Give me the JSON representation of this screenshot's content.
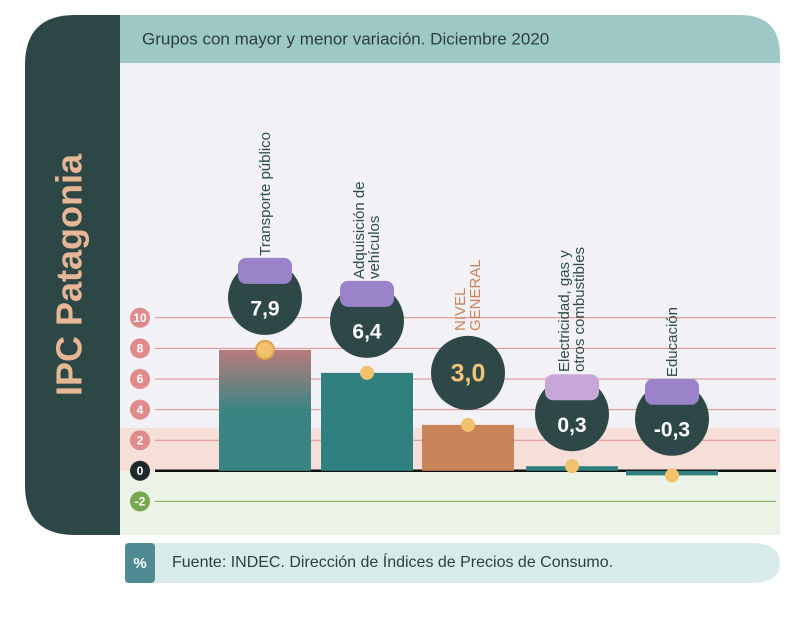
{
  "chart_data": {
    "type": "bar",
    "side_title": "IPC Patagonia",
    "title": "Grupos con mayor y menor variación. Diciembre 2020",
    "categories": [
      "Transporte público",
      "Adquisición de vehículos",
      "NIVEL GENERAL",
      "Electricidad, gas y otros combustibles",
      "Educación"
    ],
    "values": [
      7.9,
      6.4,
      3.0,
      0.3,
      -0.3
    ],
    "value_labels": [
      "7,9",
      "6,4",
      "3,0",
      "0,3",
      "-0,3"
    ],
    "colors": [
      "#3a8583",
      "#2f807e",
      "#c98459",
      "#2f807e",
      "#2f807e"
    ],
    "ylim": [
      -4,
      26
    ],
    "yticks": [
      -2,
      0,
      2,
      4,
      6,
      8,
      10
    ],
    "unit": "%",
    "source": "Fuente: INDEC. Dirección de Índices de Precios de Consumo."
  }
}
